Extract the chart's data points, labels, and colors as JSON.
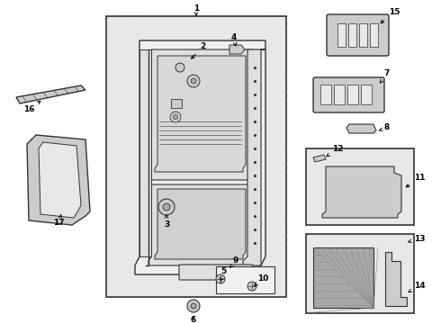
{
  "bg_color": "#ffffff",
  "line_color": "#333333",
  "dot_color": "#bbbbbb",
  "light_gray": "#e8e8e8",
  "mid_gray": "#cccccc",
  "dark_gray": "#aaaaaa",
  "figsize": [
    4.9,
    3.6
  ],
  "dpi": 100
}
